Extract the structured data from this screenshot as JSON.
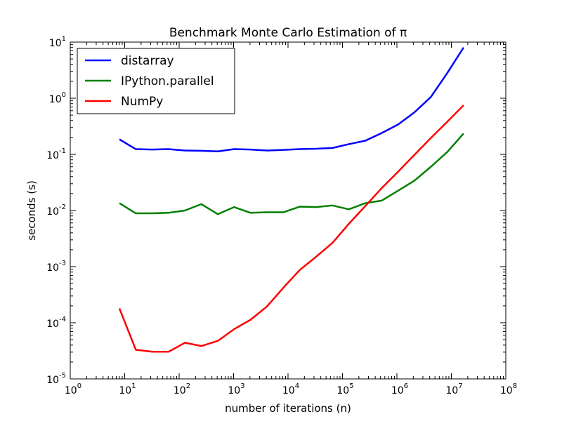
{
  "chart_data": {
    "type": "line",
    "title": "Benchmark Monte Carlo Estimation of π",
    "xlabel": "number of iterations (n)",
    "ylabel": "seconds (s)",
    "xscale": "log",
    "yscale": "log",
    "xlim": [
      1,
      100000000
    ],
    "ylim": [
      1e-05,
      10
    ],
    "grid": false,
    "legend_position": "top-left",
    "x_ticks": [
      {
        "base": "10",
        "exp": "0"
      },
      {
        "base": "10",
        "exp": "1"
      },
      {
        "base": "10",
        "exp": "2"
      },
      {
        "base": "10",
        "exp": "3"
      },
      {
        "base": "10",
        "exp": "4"
      },
      {
        "base": "10",
        "exp": "5"
      },
      {
        "base": "10",
        "exp": "6"
      },
      {
        "base": "10",
        "exp": "7"
      },
      {
        "base": "10",
        "exp": "8"
      }
    ],
    "y_ticks": [
      {
        "base": "10",
        "exp": "-5"
      },
      {
        "base": "10",
        "exp": "-4"
      },
      {
        "base": "10",
        "exp": "-3"
      },
      {
        "base": "10",
        "exp": "-2"
      },
      {
        "base": "10",
        "exp": "-1"
      },
      {
        "base": "10",
        "exp": "0"
      },
      {
        "base": "10",
        "exp": "1"
      }
    ],
    "x": [
      8,
      16,
      32,
      64,
      128,
      256,
      512,
      1024,
      2048,
      4096,
      8192,
      16384,
      32768,
      65536,
      131072,
      262144,
      524288,
      1048576,
      2097152,
      4194304,
      8388608,
      16777216
    ],
    "series": [
      {
        "name": "distarray",
        "color": "#0000ff",
        "values": [
          0.185,
          0.124,
          0.122,
          0.124,
          0.117,
          0.116,
          0.113,
          0.124,
          0.122,
          0.117,
          0.12,
          0.124,
          0.126,
          0.13,
          0.152,
          0.175,
          0.24,
          0.34,
          0.56,
          1.05,
          2.8,
          8.0
        ]
      },
      {
        "name": "IPython.parallel",
        "color": "#008000",
        "values": [
          0.0135,
          0.0089,
          0.0089,
          0.0091,
          0.01,
          0.013,
          0.0086,
          0.0115,
          0.0091,
          0.0093,
          0.0093,
          0.0117,
          0.0115,
          0.0123,
          0.0105,
          0.0135,
          0.015,
          0.0225,
          0.034,
          0.06,
          0.11,
          0.235
        ]
      },
      {
        "name": "NumPy",
        "color": "#ff0000",
        "values": [
          0.00018,
          3.3e-05,
          3.05e-05,
          3.05e-05,
          4.4e-05,
          3.85e-05,
          4.75e-05,
          7.7e-05,
          0.000113,
          0.000195,
          0.00042,
          0.00087,
          0.0015,
          0.00265,
          0.0058,
          0.012,
          0.025,
          0.049,
          0.098,
          0.195,
          0.38,
          0.75
        ]
      }
    ]
  }
}
